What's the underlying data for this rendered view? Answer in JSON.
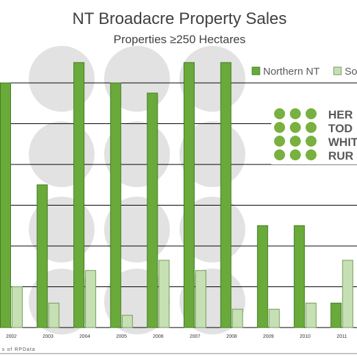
{
  "chart_data": {
    "type": "bar",
    "title": "NT Broadacre Property Sales",
    "subtitle": "Properties ≥250 Hectares",
    "categories": [
      "2002",
      "2003",
      "2004",
      "2005",
      "2006",
      "2007",
      "2008",
      "2009",
      "2010",
      "2011"
    ],
    "series": [
      {
        "name": "Northern NT",
        "values": [
          12,
          7,
          13,
          12,
          11.5,
          13,
          13,
          5,
          5,
          1.2
        ]
      },
      {
        "name": "So",
        "values": [
          2,
          1.2,
          2.8,
          0.6,
          3.3,
          2.8,
          0.9,
          0.9,
          1.2,
          3.3
        ]
      }
    ],
    "ylim": [
      0,
      14
    ],
    "grid": true,
    "legend_position": "top-right",
    "source_text": "s of RPData",
    "colors": {
      "northern": "#6aaa3a",
      "northern_border": "#3f7a1f",
      "southern": "#c6e0b4",
      "southern_border": "#6f9a55",
      "grid": "#000000",
      "title": "#404040"
    }
  },
  "logo": {
    "lines": [
      "HER",
      "TOD",
      "WHIT",
      "RUR"
    ]
  }
}
